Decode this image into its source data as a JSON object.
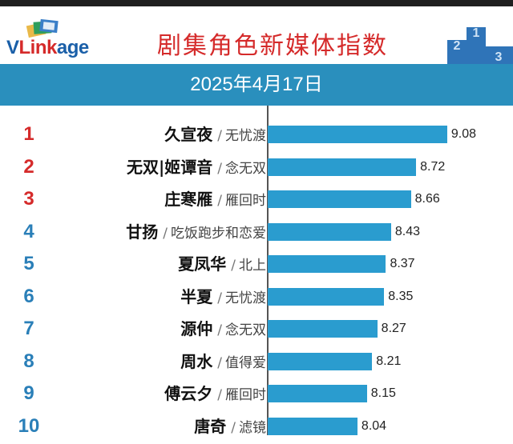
{
  "header": {
    "logo": {
      "v": "V",
      "link": "Link",
      "age": "age"
    },
    "title": "剧集角色新媒体指数"
  },
  "date_bar": "2025年4月17日",
  "colors": {
    "accent": "#2a8fbd",
    "bar": "#2a9ccf",
    "title": "#d52a2a",
    "rank_top": "#d52a2a",
    "rank_rest": "#2a7fb8"
  },
  "podium_icon": "podium-icon",
  "chart_data": {
    "type": "bar",
    "orientation": "horizontal",
    "title": "",
    "xlabel": "",
    "ylabel": "",
    "xlim": [
      7.0,
      9.1
    ],
    "grid": false,
    "categories": [
      "久宣夜 / 无忧渡",
      "无双|姬谭音 / 念无双",
      "庄寒雁 / 雁回时",
      "甘扬 / 吃饭跑步和恋爱",
      "夏凤华 / 北上",
      "半夏 / 无忧渡",
      "源仲 / 念无双",
      "周水 / 值得爱",
      "傅云夕 / 雁回时",
      "唐奇 / 滤镜"
    ],
    "rows": [
      {
        "rank": "1",
        "character": "久宣夜",
        "sep": "/",
        "drama": "无忧渡",
        "value": 9.08,
        "value_label": "9.08"
      },
      {
        "rank": "2",
        "character": "无双|姬谭音",
        "sep": "/",
        "drama": "念无双",
        "value": 8.72,
        "value_label": "8.72"
      },
      {
        "rank": "3",
        "character": "庄寒雁",
        "sep": "/",
        "drama": "雁回时",
        "value": 8.66,
        "value_label": "8.66"
      },
      {
        "rank": "4",
        "character": "甘扬",
        "sep": "/",
        "drama": "吃饭跑步和恋爱",
        "value": 8.43,
        "value_label": "8.43"
      },
      {
        "rank": "5",
        "character": "夏凤华",
        "sep": "/",
        "drama": "北上",
        "value": 8.37,
        "value_label": "8.37"
      },
      {
        "rank": "6",
        "character": "半夏",
        "sep": "/",
        "drama": "无忧渡",
        "value": 8.35,
        "value_label": "8.35"
      },
      {
        "rank": "7",
        "character": "源仲",
        "sep": "/",
        "drama": "念无双",
        "value": 8.27,
        "value_label": "8.27"
      },
      {
        "rank": "8",
        "character": "周水",
        "sep": "/",
        "drama": "值得爱",
        "value": 8.21,
        "value_label": "8.21"
      },
      {
        "rank": "9",
        "character": "傅云夕",
        "sep": "/",
        "drama": "雁回时",
        "value": 8.15,
        "value_label": "8.15"
      },
      {
        "rank": "10",
        "character": "唐奇",
        "sep": "/",
        "drama": "滤镜",
        "value": 8.04,
        "value_label": "8.04"
      }
    ]
  }
}
